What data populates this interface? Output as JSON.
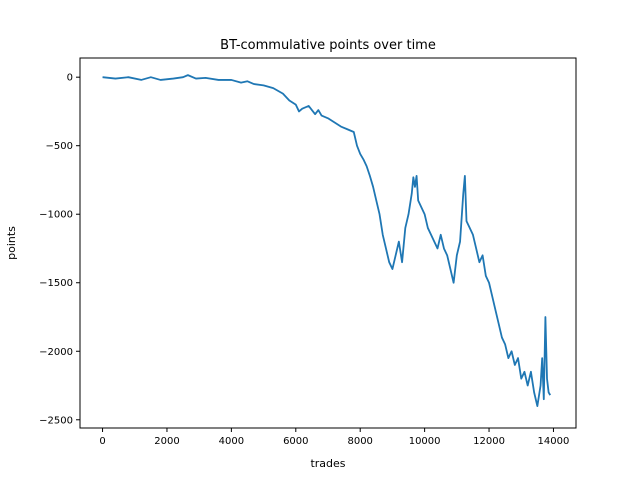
{
  "chart_data": {
    "type": "line",
    "title": "BT-commulative points over time",
    "xlabel": "trades",
    "ylabel": "points",
    "xlim": [
      -700,
      14700
    ],
    "ylim": [
      -2560,
      140
    ],
    "xticks": [
      0,
      2000,
      4000,
      6000,
      8000,
      10000,
      12000,
      14000
    ],
    "yticks": [
      0,
      -500,
      -1000,
      -1500,
      -2000,
      -2500
    ],
    "xtick_labels": [
      "0",
      "2000",
      "4000",
      "6000",
      "8000",
      "10000",
      "12000",
      "14000"
    ],
    "ytick_labels": [
      "0",
      "−500",
      "−1000",
      "−1500",
      "−2000",
      "−2500"
    ],
    "grid": false,
    "legend": "none",
    "series": [
      {
        "color": "#1f77b4",
        "x": [
          0,
          400,
          800,
          1200,
          1500,
          1800,
          2200,
          2500,
          2650,
          2900,
          3200,
          3600,
          4000,
          4300,
          4500,
          4700,
          5000,
          5300,
          5600,
          5800,
          6000,
          6100,
          6200,
          6400,
          6600,
          6700,
          6800,
          7000,
          7200,
          7400,
          7600,
          7800,
          7900,
          8000,
          8100,
          8200,
          8300,
          8400,
          8500,
          8600,
          8700,
          8800,
          8900,
          9000,
          9100,
          9200,
          9300,
          9400,
          9500,
          9600,
          9650,
          9700,
          9750,
          9800,
          9900,
          10000,
          10100,
          10200,
          10300,
          10400,
          10500,
          10600,
          10700,
          10800,
          10900,
          11000,
          11100,
          11200,
          11250,
          11300,
          11400,
          11500,
          11600,
          11700,
          11800,
          11900,
          12000,
          12100,
          12200,
          12300,
          12400,
          12500,
          12600,
          12700,
          12800,
          12900,
          13000,
          13100,
          13200,
          13300,
          13400,
          13500,
          13600,
          13650,
          13700,
          13750,
          13800,
          13850,
          13900
        ],
        "y": [
          0,
          -10,
          0,
          -20,
          0,
          -20,
          -10,
          0,
          15,
          -10,
          -5,
          -20,
          -20,
          -40,
          -30,
          -50,
          -60,
          -80,
          -120,
          -170,
          -200,
          -250,
          -230,
          -210,
          -270,
          -240,
          -280,
          -300,
          -330,
          -360,
          -380,
          -400,
          -500,
          -560,
          -600,
          -650,
          -720,
          -800,
          -900,
          -1000,
          -1150,
          -1250,
          -1350,
          -1400,
          -1300,
          -1200,
          -1350,
          -1100,
          -1000,
          -850,
          -730,
          -800,
          -720,
          -900,
          -950,
          -1000,
          -1100,
          -1150,
          -1200,
          -1250,
          -1150,
          -1250,
          -1300,
          -1400,
          -1500,
          -1300,
          -1200,
          -850,
          -720,
          -1050,
          -1100,
          -1150,
          -1250,
          -1350,
          -1300,
          -1450,
          -1500,
          -1600,
          -1700,
          -1800,
          -1900,
          -1950,
          -2050,
          -2000,
          -2100,
          -2050,
          -2200,
          -2150,
          -2250,
          -2150,
          -2300,
          -2400,
          -2250,
          -2050,
          -2350,
          -1750,
          -2200,
          -2300,
          -2320
        ]
      }
    ]
  }
}
